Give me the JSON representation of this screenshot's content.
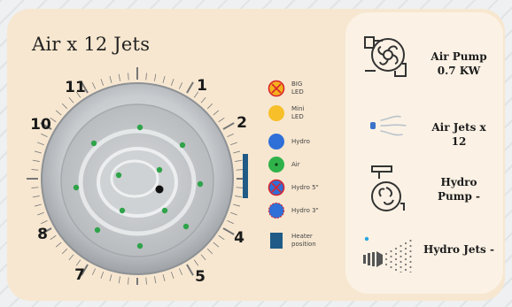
{
  "title": "Air x 12 Jets",
  "dial_numbers": [
    "11",
    "1",
    "2",
    "4",
    "5",
    "7",
    "8",
    "10"
  ],
  "legend": [
    {
      "label": "BIG\nLED",
      "icon": "big-led-icon",
      "color": "#f5b21c"
    },
    {
      "label": "Mini\nLED",
      "icon": "mini-led-icon",
      "color": "#f7bf2a"
    },
    {
      "label": "Hydro",
      "icon": "hydro-icon",
      "color": "#2f6fd8"
    },
    {
      "label": "Air",
      "icon": "air-icon",
      "color": "#2fb24a"
    },
    {
      "label": "Hydro 5\"",
      "icon": "hydro-5-icon",
      "color": "#2f6fd8"
    },
    {
      "label": "Hydro 3\"",
      "icon": "hydro-3-icon",
      "color": "#2f6fd8"
    },
    {
      "label": "Heater\nposition",
      "icon": "heater-position-icon",
      "color": "#1f5b86"
    }
  ],
  "features": [
    {
      "label": "Air Pump\n0.7 KW",
      "icon": "air-pump-icon"
    },
    {
      "label": "Air Jets\nx 12",
      "icon": "air-jets-icon"
    },
    {
      "label": "Hydro\nPump  -",
      "icon": "hydro-pump-icon"
    },
    {
      "label": "Hydro Jets\n-",
      "icon": "hydro-jets-icon"
    }
  ],
  "colors": {
    "card": "#f7e7d0",
    "panel": "#fbf2e5",
    "air_jet": "#2fa34a",
    "heater": "#1f5b86"
  }
}
